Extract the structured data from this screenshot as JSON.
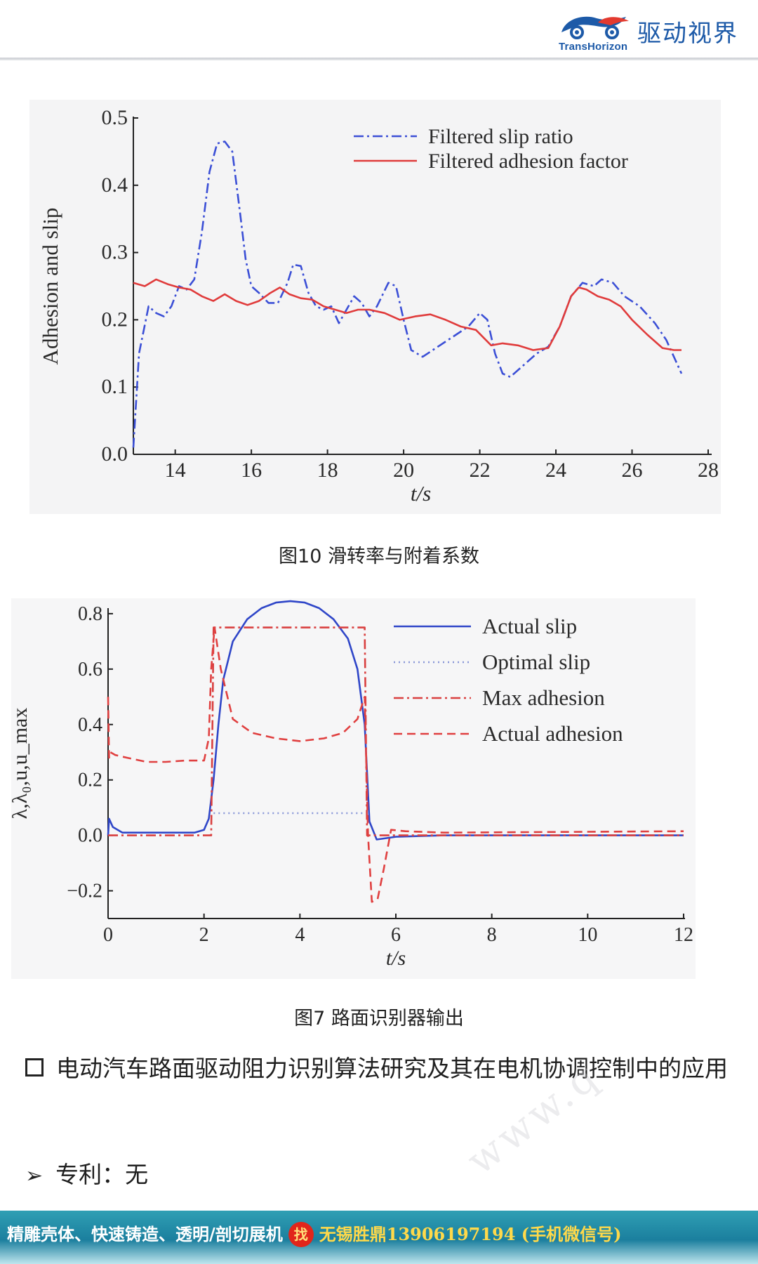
{
  "header": {
    "logo_en": "TransHorizon",
    "logo_cn": "驱动视界"
  },
  "chart_data": [
    {
      "type": "line",
      "xlabel": "t/s",
      "ylabel": "Adhesion and slip",
      "xlim": [
        12.9,
        28
      ],
      "ylim": [
        0,
        0.5
      ],
      "xticks": [
        14,
        16,
        18,
        20,
        22,
        24,
        26,
        28
      ],
      "yticks": [
        0.0,
        0.1,
        0.2,
        0.3,
        0.4,
        0.5
      ],
      "legend_position": "top-right",
      "grid": false,
      "series": [
        {
          "name": "Filtered slip ratio",
          "color": "#3b4fd6",
          "style": "dashdot",
          "x": [
            12.9,
            13.05,
            13.3,
            13.5,
            13.7,
            13.9,
            14.1,
            14.3,
            14.5,
            14.7,
            14.9,
            15.1,
            15.3,
            15.5,
            15.7,
            15.85,
            16.0,
            16.2,
            16.45,
            16.7,
            16.95,
            17.1,
            17.3,
            17.5,
            17.7,
            17.9,
            18.1,
            18.3,
            18.5,
            18.7,
            18.9,
            19.1,
            19.3,
            19.6,
            19.8,
            20.0,
            20.2,
            20.5,
            20.9,
            21.3,
            21.7,
            22.0,
            22.2,
            22.4,
            22.6,
            22.8,
            23.1,
            23.5,
            23.8,
            24.1,
            24.4,
            24.7,
            25.0,
            25.2,
            25.5,
            25.8,
            26.2,
            26.6,
            26.9,
            27.3
          ],
          "y": [
            0.01,
            0.15,
            0.22,
            0.21,
            0.205,
            0.22,
            0.25,
            0.245,
            0.26,
            0.33,
            0.42,
            0.462,
            0.465,
            0.45,
            0.36,
            0.29,
            0.25,
            0.24,
            0.225,
            0.225,
            0.255,
            0.282,
            0.28,
            0.24,
            0.22,
            0.215,
            0.22,
            0.195,
            0.215,
            0.235,
            0.225,
            0.205,
            0.22,
            0.255,
            0.25,
            0.2,
            0.155,
            0.145,
            0.16,
            0.175,
            0.19,
            0.21,
            0.2,
            0.15,
            0.12,
            0.115,
            0.13,
            0.15,
            0.16,
            0.19,
            0.235,
            0.255,
            0.25,
            0.26,
            0.255,
            0.235,
            0.22,
            0.195,
            0.17,
            0.12
          ]
        },
        {
          "name": "Filtered adhesion factor",
          "color": "#e03b3b",
          "style": "solid",
          "x": [
            12.9,
            13.2,
            13.5,
            13.8,
            14.1,
            14.4,
            14.7,
            15.0,
            15.3,
            15.6,
            15.9,
            16.2,
            16.5,
            16.75,
            17.0,
            17.3,
            17.6,
            17.9,
            18.2,
            18.5,
            18.8,
            19.1,
            19.5,
            19.9,
            20.3,
            20.7,
            21.1,
            21.5,
            21.9,
            22.3,
            22.6,
            23.0,
            23.4,
            23.8,
            24.1,
            24.4,
            24.6,
            24.8,
            25.1,
            25.4,
            25.7,
            26.0,
            26.4,
            26.8,
            27.1,
            27.3
          ],
          "y": [
            0.255,
            0.25,
            0.26,
            0.253,
            0.248,
            0.245,
            0.235,
            0.228,
            0.238,
            0.228,
            0.222,
            0.228,
            0.24,
            0.248,
            0.238,
            0.232,
            0.23,
            0.22,
            0.215,
            0.21,
            0.215,
            0.215,
            0.21,
            0.2,
            0.205,
            0.208,
            0.2,
            0.19,
            0.185,
            0.162,
            0.165,
            0.162,
            0.155,
            0.158,
            0.19,
            0.235,
            0.248,
            0.245,
            0.235,
            0.23,
            0.22,
            0.2,
            0.178,
            0.158,
            0.155,
            0.155
          ]
        }
      ]
    },
    {
      "type": "line",
      "xlabel": "t/s",
      "ylabel": "λ,λ₀,u,u_max",
      "xlim": [
        0,
        12
      ],
      "ylim": [
        -0.3,
        0.82
      ],
      "xticks": [
        0,
        2,
        4,
        6,
        8,
        10,
        12
      ],
      "yticks": [
        -0.2,
        0.0,
        0.2,
        0.4,
        0.6,
        0.8
      ],
      "legend_position": "top-right",
      "grid": false,
      "series": [
        {
          "name": "Actual slip",
          "color": "#2f46c8",
          "style": "solid",
          "x": [
            0,
            0.02,
            0.1,
            0.3,
            1.0,
            1.8,
            2.0,
            2.1,
            2.2,
            2.3,
            2.4,
            2.6,
            2.9,
            3.2,
            3.5,
            3.8,
            4.1,
            4.4,
            4.7,
            5.0,
            5.2,
            5.35,
            5.45,
            5.6,
            6.0,
            7.0,
            12.0
          ],
          "y": [
            0.0,
            0.06,
            0.03,
            0.01,
            0.01,
            0.01,
            0.02,
            0.06,
            0.2,
            0.4,
            0.56,
            0.7,
            0.78,
            0.82,
            0.84,
            0.845,
            0.84,
            0.82,
            0.78,
            0.71,
            0.6,
            0.4,
            0.05,
            -0.015,
            -0.005,
            0.0,
            0.0
          ]
        },
        {
          "name": "Optimal slip",
          "color": "#8a98d8",
          "style": "dotted",
          "x": [
            2.2,
            5.35
          ],
          "y": [
            0.08,
            0.08
          ]
        },
        {
          "name": "Max adhesion",
          "color": "#d94040",
          "style": "dashdot",
          "x": [
            0,
            2.15,
            2.2,
            5.35,
            5.4,
            12.0
          ],
          "y": [
            0.0,
            0.0,
            0.75,
            0.75,
            0.0,
            0.0
          ]
        },
        {
          "name": "Actual adhesion",
          "color": "#e04040",
          "style": "dashed",
          "x": [
            0,
            0.02,
            0.05,
            0.15,
            0.4,
            0.8,
            1.2,
            1.6,
            2.0,
            2.1,
            2.15,
            2.22,
            2.35,
            2.6,
            3.0,
            3.5,
            4.0,
            4.5,
            4.9,
            5.2,
            5.35,
            5.42,
            5.5,
            5.62,
            5.75,
            5.9,
            6.2,
            7.0,
            12.0
          ],
          "y": [
            0.5,
            0.28,
            0.3,
            0.29,
            0.28,
            0.265,
            0.265,
            0.27,
            0.27,
            0.35,
            0.6,
            0.75,
            0.6,
            0.42,
            0.37,
            0.35,
            0.34,
            0.35,
            0.37,
            0.42,
            0.5,
            0.0,
            -0.24,
            -0.23,
            -0.12,
            0.02,
            0.015,
            0.01,
            0.015
          ]
        }
      ]
    }
  ],
  "captions": {
    "fig10": "图10  滑转率与附着系数",
    "fig7": "图7 路面识别器输出"
  },
  "content": {
    "bullet_text": "电动汽车路面驱动阻力识别算法研究及其在电机协调控制中的应用",
    "patent_text": "专利：无"
  },
  "footer": {
    "left_text": "精雕壳体、快速铸造、透明/剖切展机",
    "badge": "找",
    "right_text": "无锡胜鼎13906197194 (手机微信号)"
  },
  "colors": {
    "brand_blue": "#1d5aa8",
    "footer_teal": "#1b7f9e",
    "badge_red": "#e1251b"
  }
}
